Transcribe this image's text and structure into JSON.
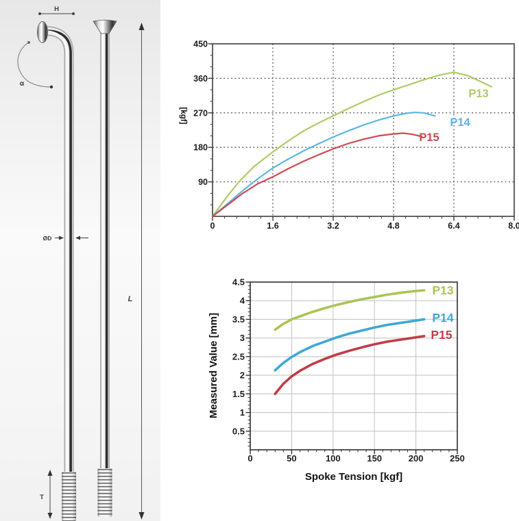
{
  "diagram": {
    "dim_head_width": "H",
    "dim_bend_angle": "α",
    "dim_diameter": "ØD",
    "dim_length": "L",
    "dim_thread_length": "T"
  },
  "chart_data": [
    {
      "type": "line",
      "title": "",
      "xlabel": "",
      "ylabel": "[kgf]",
      "xlim": [
        0,
        8.0
      ],
      "ylim": [
        0,
        450
      ],
      "x_major_ticks": [
        0,
        1.6,
        3.2,
        4.8,
        6.4,
        8.0
      ],
      "x_tick_labels": [
        "0",
        "1.6",
        "3.2",
        "4.8",
        "6.4",
        "8.0"
      ],
      "y_major_ticks": [
        90,
        180,
        270,
        360,
        450
      ],
      "y_tick_labels": [
        "90",
        "180",
        "270",
        "360",
        "450"
      ],
      "grid": "dotted",
      "legend_position": "inline-right",
      "series": [
        {
          "name": "P13",
          "color": "#afca67",
          "points": [
            [
              0,
              0
            ],
            [
              0.35,
              47
            ],
            [
              0.7,
              90
            ],
            [
              1.1,
              130
            ],
            [
              1.6,
              168
            ],
            [
              2.0,
              196
            ],
            [
              2.4,
              222
            ],
            [
              2.8,
              243
            ],
            [
              3.2,
              262
            ],
            [
              3.6,
              281
            ],
            [
              4.0,
              299
            ],
            [
              4.4,
              316
            ],
            [
              4.8,
              330
            ],
            [
              5.2,
              343
            ],
            [
              5.6,
              356
            ],
            [
              6.0,
              368
            ],
            [
              6.4,
              376
            ],
            [
              6.8,
              366
            ],
            [
              7.1,
              352
            ],
            [
              7.4,
              338
            ]
          ]
        },
        {
          "name": "P14",
          "color": "#5cb6e0",
          "points": [
            [
              0,
              0
            ],
            [
              0.4,
              33
            ],
            [
              0.8,
              67
            ],
            [
              1.2,
              98
            ],
            [
              1.6,
              126
            ],
            [
              2.0,
              149
            ],
            [
              2.4,
              170
            ],
            [
              2.8,
              189
            ],
            [
              3.2,
              207
            ],
            [
              3.6,
              223
            ],
            [
              4.0,
              238
            ],
            [
              4.4,
              251
            ],
            [
              4.8,
              262
            ],
            [
              5.1,
              268
            ],
            [
              5.35,
              271
            ],
            [
              5.6,
              270
            ],
            [
              5.9,
              262
            ]
          ]
        },
        {
          "name": "P15",
          "color": "#cc4a52",
          "points": [
            [
              0,
              0
            ],
            [
              0.4,
              30
            ],
            [
              0.8,
              60
            ],
            [
              1.2,
              85
            ],
            [
              1.6,
              103
            ],
            [
              2.0,
              124
            ],
            [
              2.4,
              143
            ],
            [
              2.8,
              160
            ],
            [
              3.2,
              176
            ],
            [
              3.6,
              190
            ],
            [
              4.0,
              201
            ],
            [
              4.4,
              210
            ],
            [
              4.8,
              215
            ],
            [
              5.05,
              217
            ],
            [
              5.3,
              214
            ],
            [
              5.55,
              208
            ]
          ]
        }
      ]
    },
    {
      "type": "line",
      "title": "",
      "xlabel": "Spoke Tension [kgf]",
      "ylabel": "Measured Value [mm]",
      "xlim": [
        0,
        250
      ],
      "ylim": [
        0,
        4.5
      ],
      "x_major_ticks": [
        0,
        50,
        100,
        150,
        200,
        250
      ],
      "x_tick_labels": [
        "0",
        "50",
        "100",
        "150",
        "200",
        "250"
      ],
      "y_major_ticks": [
        0.5,
        1,
        1.5,
        2,
        2.5,
        3,
        3.5,
        4,
        4.5
      ],
      "y_tick_labels": [
        "0.5",
        "1",
        "1.5",
        "2",
        "2.5",
        "3",
        "3.5",
        "4",
        "4.5"
      ],
      "grid": "solid",
      "legend_position": "inline-right",
      "series": [
        {
          "name": "P13",
          "color": "#a9c554",
          "points": [
            [
              30,
              3.22
            ],
            [
              40,
              3.38
            ],
            [
              50,
              3.5
            ],
            [
              60,
              3.58
            ],
            [
              75,
              3.7
            ],
            [
              90,
              3.8
            ],
            [
              105,
              3.89
            ],
            [
              120,
              3.97
            ],
            [
              135,
              4.04
            ],
            [
              150,
              4.1
            ],
            [
              165,
              4.16
            ],
            [
              180,
              4.21
            ],
            [
              195,
              4.25
            ],
            [
              210,
              4.28
            ]
          ]
        },
        {
          "name": "P14",
          "color": "#3da8d4",
          "points": [
            [
              30,
              2.13
            ],
            [
              40,
              2.33
            ],
            [
              50,
              2.49
            ],
            [
              60,
              2.62
            ],
            [
              75,
              2.78
            ],
            [
              90,
              2.9
            ],
            [
              105,
              3.02
            ],
            [
              120,
              3.12
            ],
            [
              135,
              3.2
            ],
            [
              150,
              3.28
            ],
            [
              165,
              3.35
            ],
            [
              180,
              3.4
            ],
            [
              195,
              3.45
            ],
            [
              210,
              3.5
            ]
          ]
        },
        {
          "name": "P15",
          "color": "#c23b46",
          "points": [
            [
              30,
              1.5
            ],
            [
              40,
              1.77
            ],
            [
              50,
              1.97
            ],
            [
              60,
              2.12
            ],
            [
              75,
              2.3
            ],
            [
              90,
              2.44
            ],
            [
              105,
              2.56
            ],
            [
              120,
              2.66
            ],
            [
              135,
              2.75
            ],
            [
              150,
              2.83
            ],
            [
              165,
              2.9
            ],
            [
              180,
              2.95
            ],
            [
              195,
              3.0
            ],
            [
              210,
              3.05
            ]
          ]
        }
      ]
    }
  ]
}
